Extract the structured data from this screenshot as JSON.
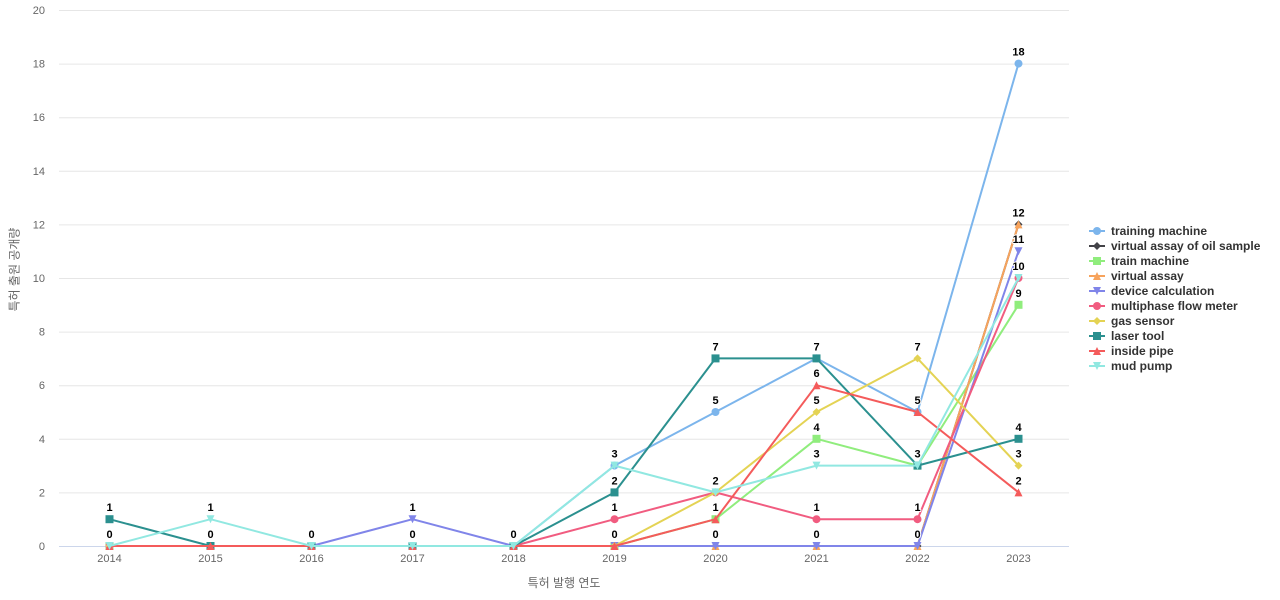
{
  "chart_data": {
    "type": "line",
    "title": "",
    "xlabel": "특허 발행 연도",
    "ylabel": "특허 출원 공개량",
    "x": [
      "2014",
      "2015",
      "2016",
      "2017",
      "2018",
      "2019",
      "2020",
      "2021",
      "2022",
      "2023"
    ],
    "ylim": [
      0,
      20
    ],
    "yticks": [
      0,
      2,
      4,
      6,
      8,
      10,
      12,
      14,
      16,
      18,
      20
    ],
    "grid": true,
    "legend_position": "right-middle",
    "grid_color": "#e6e6e6",
    "axis_line_color": "#ccd6eb",
    "tick_label_color": "#666666",
    "legend_text_color": "#333333",
    "data_label_color": "#000000",
    "series": [
      {
        "name": "training machine",
        "color": "#7cb5ec",
        "marker": "circle",
        "values": [
          0,
          0,
          0,
          0,
          0,
          3,
          5,
          7,
          5,
          18
        ]
      },
      {
        "name": "virtual assay of oil sample",
        "color": "#434348",
        "marker": "diamond",
        "values": [
          0,
          0,
          0,
          0,
          0,
          0,
          0,
          0,
          0,
          12
        ]
      },
      {
        "name": "train machine",
        "color": "#90ed7d",
        "marker": "square",
        "values": [
          0,
          0,
          0,
          0,
          0,
          0,
          1,
          4,
          3,
          9
        ]
      },
      {
        "name": "virtual assay",
        "color": "#f7a35c",
        "marker": "triangle",
        "values": [
          0,
          0,
          0,
          0,
          0,
          0,
          0,
          0,
          0,
          12
        ]
      },
      {
        "name": "device calculation",
        "color": "#8085e9",
        "marker": "triangle-down",
        "values": [
          0,
          0,
          0,
          1,
          0,
          0,
          0,
          0,
          0,
          11
        ]
      },
      {
        "name": "multiphase flow meter",
        "color": "#f15c80",
        "marker": "circle",
        "values": [
          0,
          0,
          0,
          0,
          0,
          1,
          2,
          1,
          1,
          10
        ]
      },
      {
        "name": "gas sensor",
        "color": "#e4d354",
        "marker": "diamond",
        "values": [
          0,
          0,
          0,
          0,
          0,
          0,
          2,
          5,
          7,
          3
        ]
      },
      {
        "name": "laser tool",
        "color": "#2b908f",
        "marker": "square",
        "values": [
          1,
          0,
          0,
          0,
          0,
          2,
          7,
          7,
          3,
          4
        ]
      },
      {
        "name": "inside pipe",
        "color": "#f45b5b",
        "marker": "triangle",
        "values": [
          0,
          0,
          0,
          0,
          0,
          0,
          1,
          6,
          5,
          2
        ]
      },
      {
        "name": "mud pump",
        "color": "#91e8e1",
        "marker": "triangle-down",
        "values": [
          0,
          1,
          0,
          0,
          0,
          3,
          2,
          3,
          3,
          10
        ]
      }
    ]
  }
}
